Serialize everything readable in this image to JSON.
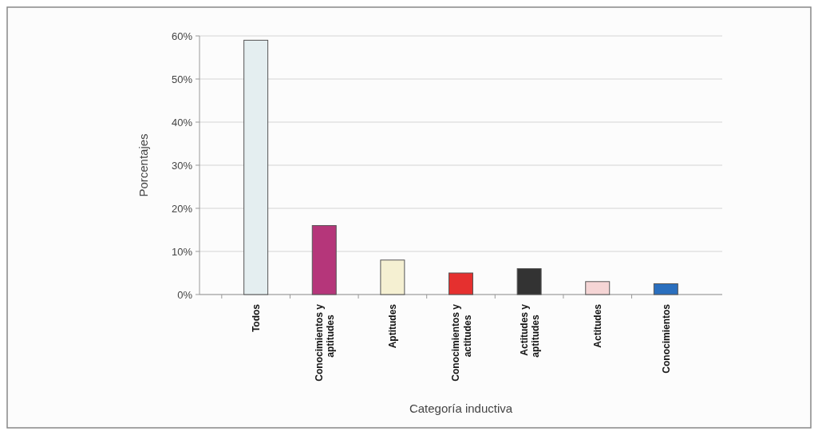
{
  "chart_data": {
    "type": "bar",
    "xlabel": "Categoría inductiva",
    "ylabel": "Porcentajes",
    "categories": [
      "Todos",
      "Conocimientos y aptitudes",
      "Aptitudes",
      "Conocimientos y actitudes",
      "Actitudes y aptitudes",
      "Actitudes",
      "Conocimientos"
    ],
    "values": [
      59,
      16,
      8,
      5,
      6,
      3,
      2.5
    ],
    "colors": [
      "#e4eef0",
      "#b5367a",
      "#f5f0d2",
      "#e5302f",
      "#333333",
      "#f5d5d5",
      "#2a6fbe"
    ],
    "ylim": [
      0,
      60
    ],
    "yticks": [
      {
        "value": 0,
        "label": "0%"
      },
      {
        "value": 10,
        "label": "10%"
      },
      {
        "value": 20,
        "label": "20%"
      },
      {
        "value": 30,
        "label": "30%"
      },
      {
        "value": 40,
        "label": "40%"
      },
      {
        "value": 50,
        "label": "50%"
      },
      {
        "value": 60,
        "label": "60%"
      }
    ],
    "grid": "y"
  }
}
